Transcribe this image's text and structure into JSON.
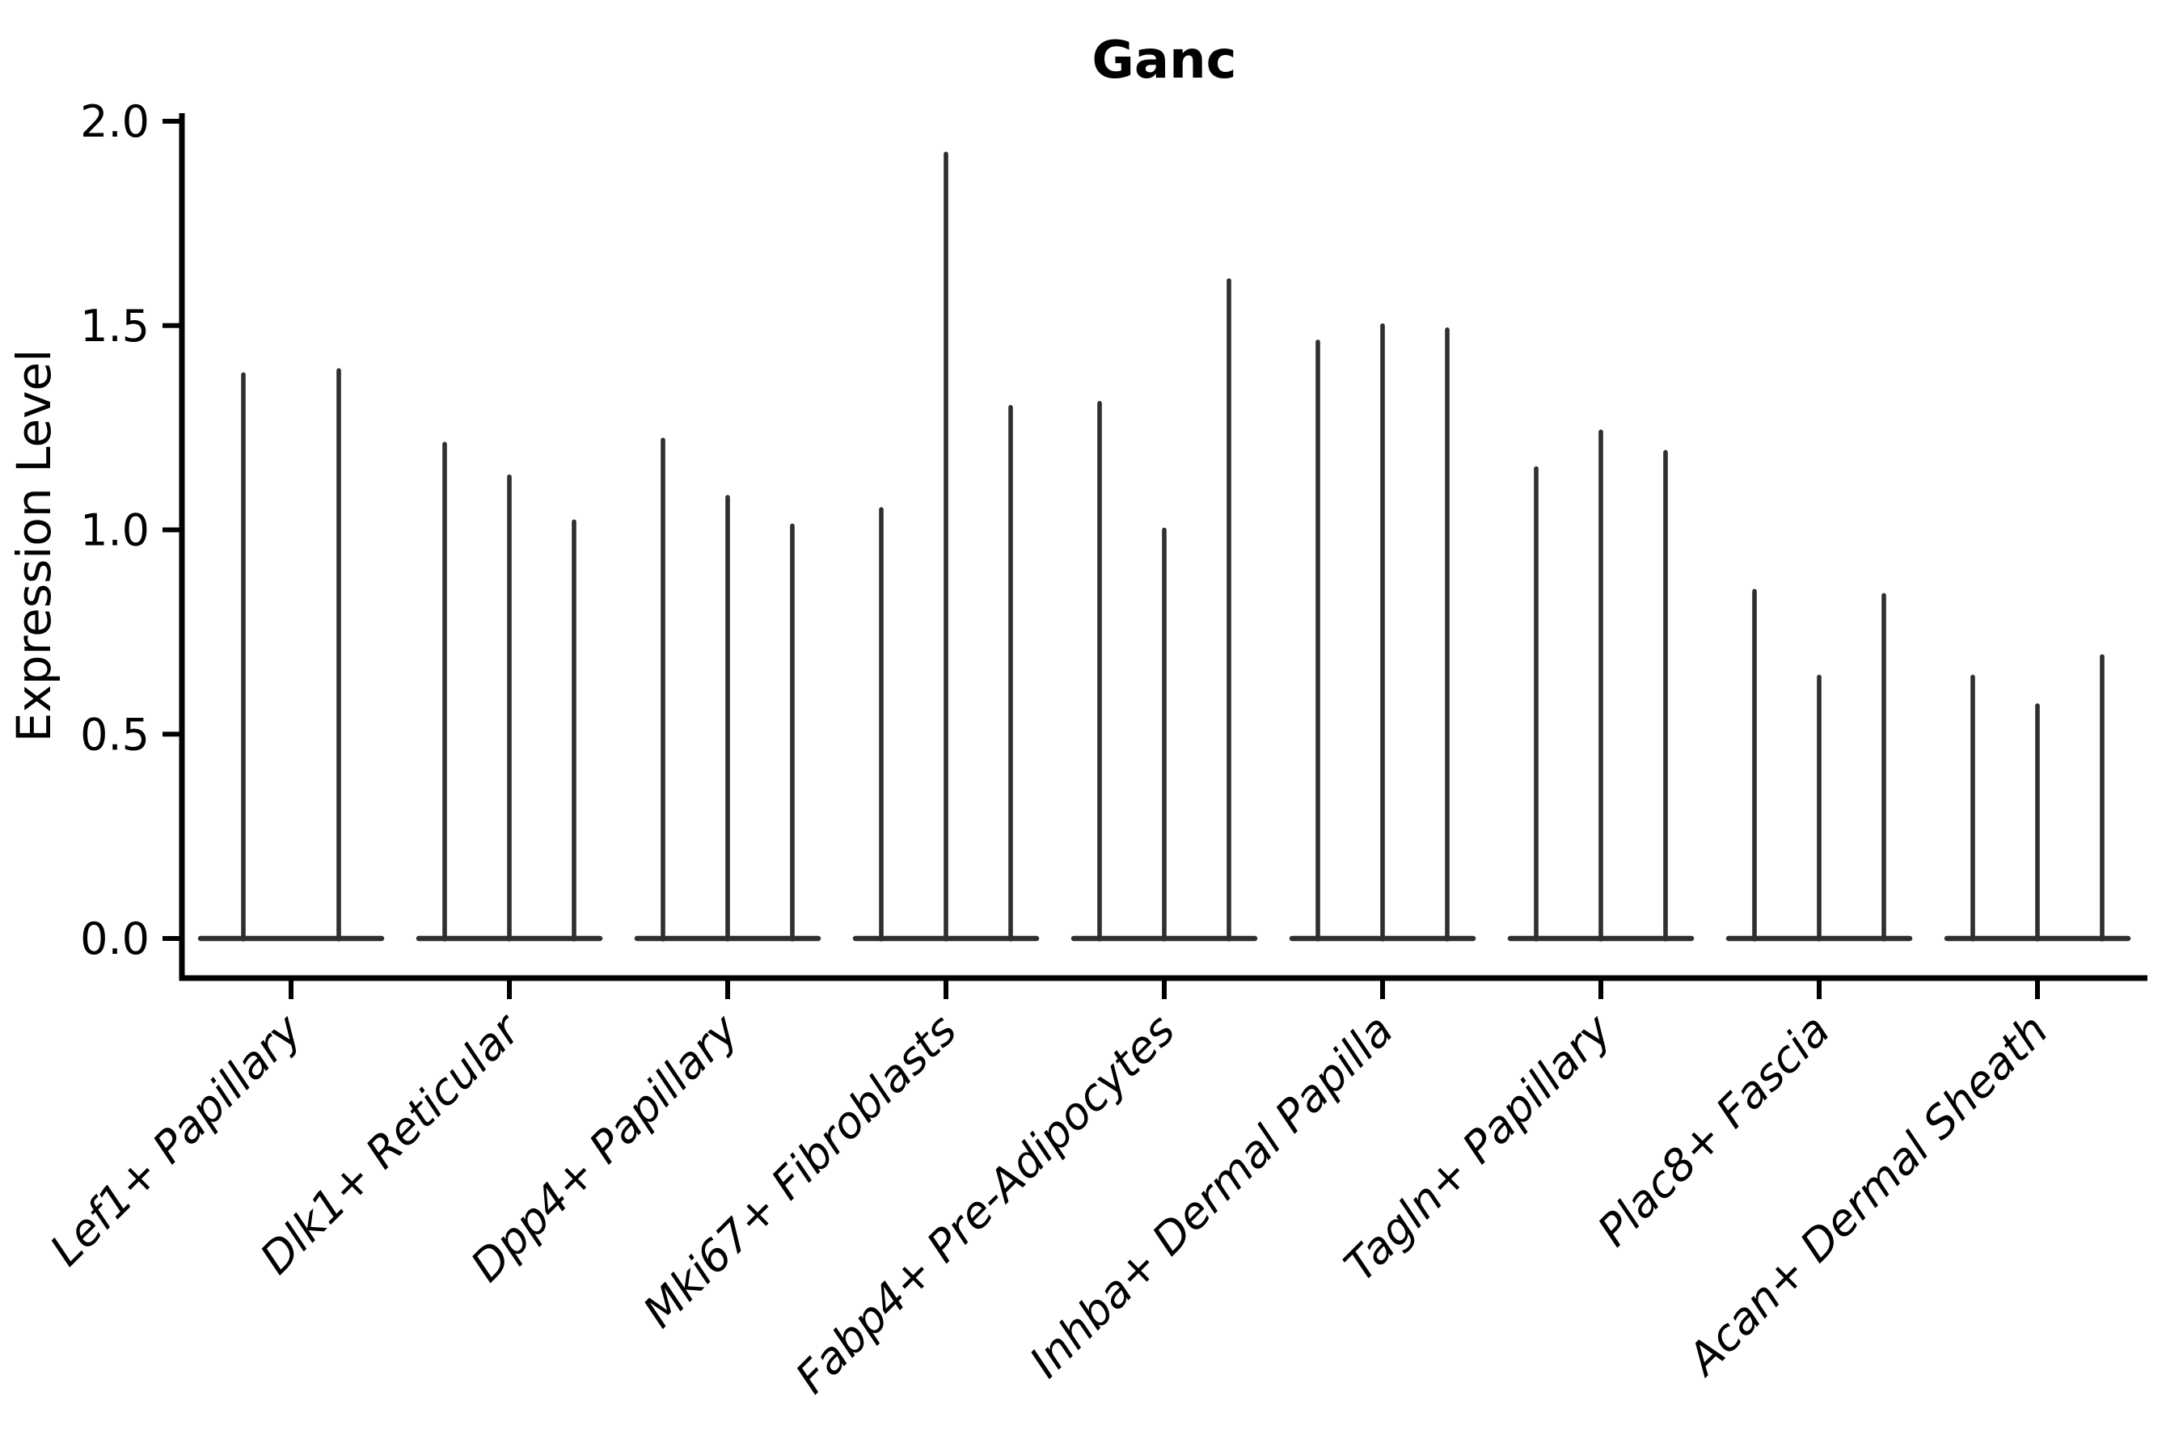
{
  "figure": {
    "title": "Ganc",
    "ylabel": "Expression Level"
  },
  "chart_data": {
    "type": "violin",
    "title": "Ganc",
    "xlabel": "",
    "ylabel": "Expression Level",
    "ylim": [
      0.0,
      2.0
    ],
    "yticks": [
      0.0,
      0.5,
      1.0,
      1.5,
      2.0
    ],
    "ytick_labels": [
      "0.0",
      "0.5",
      "1.0",
      "1.5",
      "2.0"
    ],
    "grid": false,
    "legend": "none",
    "x_tick_rotation_deg": 45,
    "categories": [
      "Lef1+ Papillary",
      "Dlk1+ Reticular",
      "Dpp4+ Papillary",
      "Mki67+ Fibroblasts",
      "Fabp4+ Pre-Adipocytes",
      "Inhba+ Dermal Papilla",
      "Tagln+ Papillary",
      "Plac8+ Fascia",
      "Acan+ Dermal Sheath"
    ],
    "violins_per_category": [
      2,
      3,
      3,
      3,
      3,
      3,
      3,
      3,
      3
    ],
    "peak_values": [
      [
        1.38,
        1.39
      ],
      [
        1.21,
        1.13,
        1.02
      ],
      [
        1.22,
        1.08,
        1.01
      ],
      [
        1.05,
        1.92,
        1.3
      ],
      [
        1.31,
        1.0,
        1.61
      ],
      [
        1.46,
        1.5,
        1.49
      ],
      [
        1.15,
        1.24,
        1.19
      ],
      [
        0.85,
        0.64,
        0.84
      ],
      [
        0.64,
        0.57,
        0.69
      ]
    ],
    "baseline_value": 0.0,
    "colors": {
      "violin": "#2f2f2f",
      "axis": "#000000",
      "background": "#ffffff"
    }
  }
}
